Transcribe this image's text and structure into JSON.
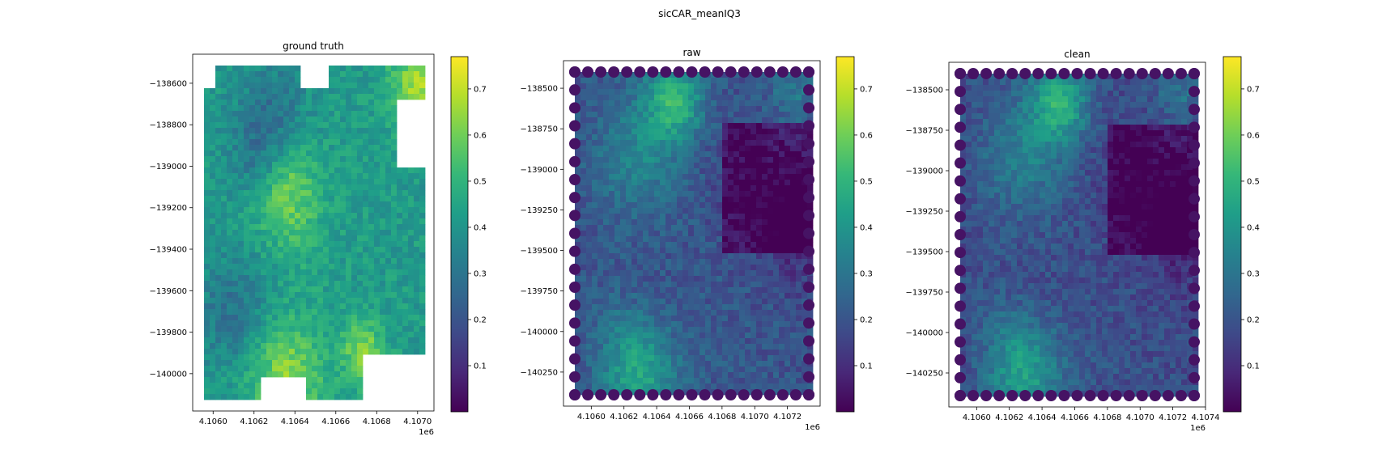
{
  "figure": {
    "suptitle": "sicCAR_meanIQ3"
  },
  "colormap": {
    "name": "viridis",
    "stops": [
      "#440154",
      "#482878",
      "#3e4a89",
      "#31688e",
      "#26828e",
      "#1f9e89",
      "#35b779",
      "#6ece58",
      "#b5de2b",
      "#fde725"
    ]
  },
  "chart_data": [
    {
      "type": "heatmap",
      "title": "ground truth",
      "xlabel": "",
      "ylabel": "",
      "x_offset_label": "1e6",
      "xlim": [
        4.1059,
        4.10708
      ],
      "ylim": [
        -140180,
        -138460
      ],
      "x_ticks": [
        4.106,
        4.1062,
        4.1064,
        4.1066,
        4.1068,
        4.107
      ],
      "x_tick_labels": [
        "4.1060",
        "4.1062",
        "4.1064",
        "4.1066",
        "4.1068",
        "4.1070"
      ],
      "y_ticks": [
        -138600,
        -138800,
        -139000,
        -139200,
        -139400,
        -139600,
        -139800,
        -140000
      ],
      "y_tick_labels": [
        "−138600",
        "−138800",
        "−139000",
        "−139200",
        "−139400",
        "−139600",
        "−139800",
        "−140000"
      ],
      "colorbar": {
        "range": [
          0.0,
          0.77
        ],
        "ticks": [
          0.1,
          0.2,
          0.3,
          0.4,
          0.5,
          0.6,
          0.7
        ],
        "tick_labels": [
          "0.1",
          "0.2",
          "0.3",
          "0.4",
          "0.5",
          "0.6",
          "0.7"
        ]
      },
      "grid": false
    },
    {
      "type": "heatmap",
      "title": "raw",
      "xlabel": "",
      "ylabel": "",
      "x_offset_label": "1e6",
      "xlim": [
        4.10583,
        4.1074
      ],
      "ylim": [
        -140460,
        -138330
      ],
      "x_ticks": [
        4.106,
        4.1062,
        4.1064,
        4.1066,
        4.1068,
        4.107,
        4.1072
      ],
      "x_tick_labels": [
        "4.1060",
        "4.1062",
        "4.1064",
        "4.1066",
        "4.1068",
        "4.1070",
        "4.1072"
      ],
      "y_ticks": [
        -138500,
        -138750,
        -139000,
        -139250,
        -139500,
        -139750,
        -140000,
        -140250
      ],
      "y_tick_labels": [
        "−138500",
        "−138750",
        "−139000",
        "−139250",
        "−139500",
        "−139750",
        "−140000",
        "−140250"
      ],
      "colorbar": {
        "range": [
          0.0,
          0.77
        ],
        "ticks": [
          0.1,
          0.2,
          0.3,
          0.4,
          0.5,
          0.6,
          0.7
        ],
        "tick_labels": [
          "0.1",
          "0.2",
          "0.3",
          "0.4",
          "0.5",
          "0.6",
          "0.7"
        ]
      },
      "grid": false
    },
    {
      "type": "heatmap",
      "title": "clean",
      "xlabel": "",
      "ylabel": "",
      "x_offset_label": "1e6",
      "xlim": [
        4.10583,
        4.1074
      ],
      "ylim": [
        -140460,
        -138330
      ],
      "x_ticks": [
        4.106,
        4.1062,
        4.1064,
        4.1066,
        4.1068,
        4.107,
        4.1072,
        4.1074
      ],
      "x_tick_labels": [
        "4.1060",
        "4.1062",
        "4.1064",
        "4.1066",
        "4.1068",
        "4.1070",
        "4.1072",
        "4.1074"
      ],
      "y_ticks": [
        -138500,
        -138750,
        -139000,
        -139250,
        -139500,
        -139750,
        -140000,
        -140250
      ],
      "y_tick_labels": [
        "−138500",
        "−138750",
        "−139000",
        "−139250",
        "−139500",
        "−139750",
        "−140000",
        "−140250"
      ],
      "colorbar": {
        "range": [
          0.0,
          0.77
        ],
        "ticks": [
          0.1,
          0.2,
          0.3,
          0.4,
          0.5,
          0.6,
          0.7
        ],
        "tick_labels": [
          "0.1",
          "0.2",
          "0.3",
          "0.4",
          "0.5",
          "0.6",
          "0.7"
        ]
      },
      "grid": false
    }
  ]
}
